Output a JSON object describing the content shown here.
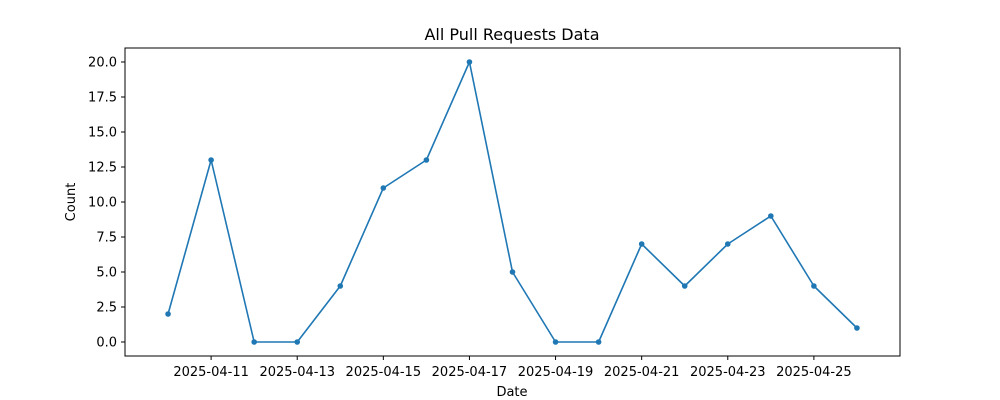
{
  "chart_data": {
    "type": "line",
    "title": "All Pull Requests Data",
    "xlabel": "Date",
    "ylabel": "Count",
    "x": [
      "2025-04-10",
      "2025-04-11",
      "2025-04-12",
      "2025-04-13",
      "2025-04-14",
      "2025-04-15",
      "2025-04-16",
      "2025-04-17",
      "2025-04-18",
      "2025-04-19",
      "2025-04-20",
      "2025-04-21",
      "2025-04-22",
      "2025-04-23",
      "2025-04-24",
      "2025-04-25",
      "2025-04-26"
    ],
    "series": [
      {
        "values": [
          2,
          13,
          0,
          0,
          4,
          11,
          13,
          20,
          5,
          0,
          0,
          7,
          4,
          7,
          9,
          4,
          1
        ],
        "color": "#1f77b4"
      }
    ],
    "x_ticks": [
      "2025-04-11",
      "2025-04-13",
      "2025-04-15",
      "2025-04-17",
      "2025-04-19",
      "2025-04-21",
      "2025-04-23",
      "2025-04-25"
    ],
    "y_ticks": [
      "0.0",
      "2.5",
      "5.0",
      "7.5",
      "10.0",
      "12.5",
      "15.0",
      "17.5",
      "20.0"
    ],
    "xlim": [
      "2025-04-09",
      "2025-04-27"
    ],
    "ylim": [
      -1,
      21
    ],
    "grid": false,
    "legend": false,
    "marker": "circle"
  }
}
